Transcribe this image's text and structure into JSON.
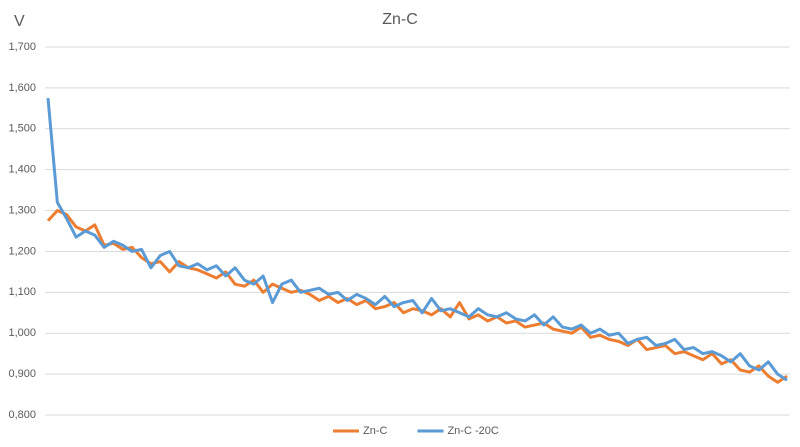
{
  "chart_data": {
    "type": "line",
    "title": "Zn-C",
    "y_label": "V",
    "ylim": [
      0.8,
      1.7
    ],
    "yticks": [
      {
        "value": 0.8,
        "label": "0,800"
      },
      {
        "value": 0.9,
        "label": "0,900"
      },
      {
        "value": 1.0,
        "label": "1,000"
      },
      {
        "value": 1.1,
        "label": "1,100"
      },
      {
        "value": 1.2,
        "label": "1,200"
      },
      {
        "value": 1.3,
        "label": "1,300"
      },
      {
        "value": 1.4,
        "label": "1,400"
      },
      {
        "value": 1.5,
        "label": "1,500"
      },
      {
        "value": 1.6,
        "label": "1,600"
      },
      {
        "value": 1.7,
        "label": "1,700"
      }
    ],
    "grid": true,
    "legend": "bottom",
    "series": [
      {
        "name": "Zn-C",
        "color": "#ed7d31",
        "values": [
          1.275,
          1.3,
          1.29,
          1.26,
          1.25,
          1.265,
          1.215,
          1.22,
          1.205,
          1.21,
          1.185,
          1.17,
          1.175,
          1.15,
          1.175,
          1.16,
          1.155,
          1.145,
          1.135,
          1.15,
          1.12,
          1.115,
          1.13,
          1.1,
          1.12,
          1.11,
          1.1,
          1.105,
          1.095,
          1.08,
          1.09,
          1.075,
          1.085,
          1.07,
          1.08,
          1.06,
          1.065,
          1.075,
          1.05,
          1.06,
          1.055,
          1.045,
          1.06,
          1.04,
          1.075,
          1.035,
          1.045,
          1.03,
          1.04,
          1.025,
          1.03,
          1.015,
          1.02,
          1.025,
          1.01,
          1.005,
          1.0,
          1.015,
          0.99,
          0.995,
          0.985,
          0.98,
          0.97,
          0.985,
          0.96,
          0.965,
          0.97,
          0.95,
          0.955,
          0.945,
          0.935,
          0.95,
          0.925,
          0.935,
          0.91,
          0.905,
          0.92,
          0.895,
          0.88,
          0.895
        ]
      },
      {
        "name": "Zn-C -20C",
        "color": "#5b9bd5",
        "values": [
          1.575,
          1.32,
          1.28,
          1.235,
          1.25,
          1.24,
          1.21,
          1.225,
          1.215,
          1.2,
          1.205,
          1.16,
          1.19,
          1.2,
          1.165,
          1.16,
          1.17,
          1.155,
          1.165,
          1.14,
          1.16,
          1.13,
          1.12,
          1.14,
          1.075,
          1.12,
          1.13,
          1.1,
          1.105,
          1.11,
          1.095,
          1.1,
          1.08,
          1.095,
          1.085,
          1.07,
          1.09,
          1.065,
          1.075,
          1.08,
          1.05,
          1.085,
          1.055,
          1.06,
          1.05,
          1.04,
          1.06,
          1.045,
          1.04,
          1.05,
          1.035,
          1.03,
          1.045,
          1.02,
          1.04,
          1.015,
          1.01,
          1.02,
          1.0,
          1.01,
          0.995,
          1.0,
          0.975,
          0.985,
          0.99,
          0.97,
          0.975,
          0.985,
          0.96,
          0.965,
          0.95,
          0.955,
          0.945,
          0.93,
          0.95,
          0.92,
          0.91,
          0.93,
          0.9,
          0.885
        ]
      }
    ]
  }
}
